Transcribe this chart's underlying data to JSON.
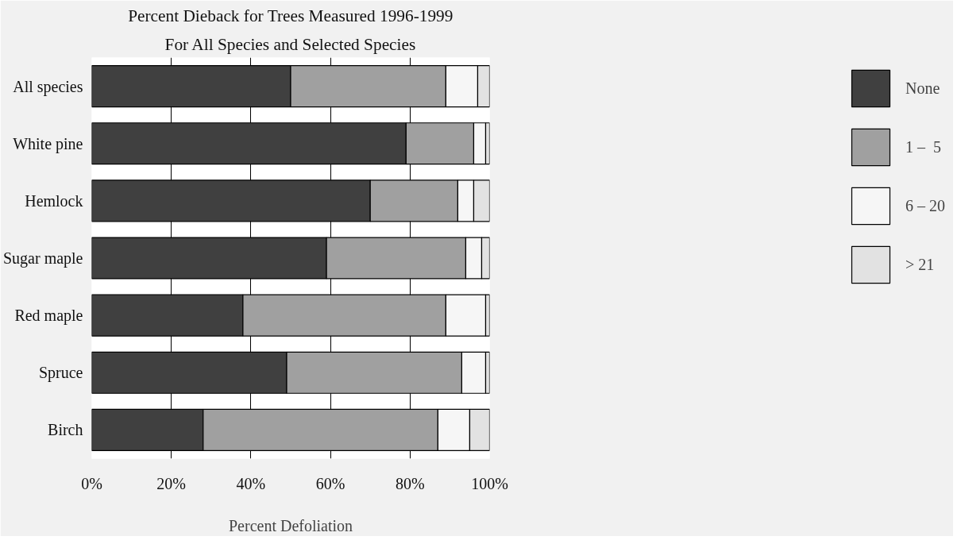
{
  "chart_data": {
    "type": "bar",
    "orientation": "horizontal",
    "stacked": true,
    "title": "Percent Dieback for Trees Measured 1996-1999",
    "subtitle": "For All Species and Selected Species",
    "xlabel": "Percent Defoliation",
    "categories": [
      "All species",
      "White pine",
      "Hemlock",
      "Sugar maple",
      "Red maple",
      "Spruce",
      "Birch"
    ],
    "series": [
      {
        "name": "None",
        "color": "#404040",
        "values": [
          50,
          79,
          70,
          59,
          38,
          49,
          28
        ]
      },
      {
        "name": "1 –  5",
        "color": "#a0a0a0",
        "values": [
          39,
          17,
          22,
          35,
          51,
          44,
          59
        ]
      },
      {
        "name": "6 – 20",
        "color": "#f6f6f6",
        "values": [
          8,
          3,
          4,
          4,
          10,
          6,
          8
        ]
      },
      {
        "name": "> 21",
        "color": "#e2e2e2",
        "values": [
          3,
          1,
          4,
          2,
          1,
          1,
          5
        ]
      }
    ],
    "xlim": [
      0,
      100
    ],
    "xticks": [
      {
        "value": 0,
        "label": "0%"
      },
      {
        "value": 20,
        "label": "20%"
      },
      {
        "value": 40,
        "label": "40%"
      },
      {
        "value": 60,
        "label": "60%"
      },
      {
        "value": 80,
        "label": "80%"
      },
      {
        "value": 100,
        "label": "100%"
      }
    ],
    "grid": "x",
    "legend": "right"
  }
}
